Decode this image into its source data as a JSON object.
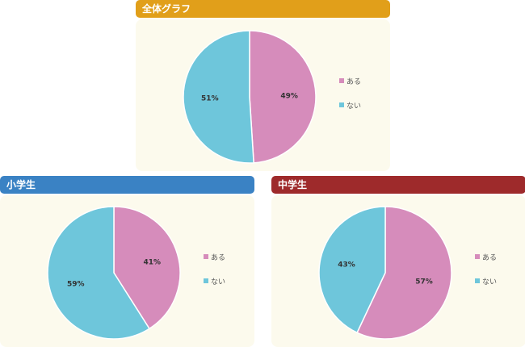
{
  "chart_data": [
    {
      "type": "pie",
      "title": "全体グラフ",
      "header_color": "#e19f1a",
      "categories": [
        "ある",
        "ない"
      ],
      "values": [
        49,
        51
      ],
      "labels": [
        "49%",
        "51%"
      ]
    },
    {
      "type": "pie",
      "title": "小学生",
      "header_color": "#3a82c4",
      "categories": [
        "ある",
        "ない"
      ],
      "values": [
        41,
        59
      ],
      "labels": [
        "41%",
        "59%"
      ]
    },
    {
      "type": "pie",
      "title": "中学生",
      "header_color": "#9e2a2b",
      "categories": [
        "ある",
        "ない"
      ],
      "values": [
        57,
        43
      ],
      "labels": [
        "57%",
        "43%"
      ]
    }
  ],
  "colors": {
    "ある": "#d68cbb",
    "ない": "#6ec6db"
  }
}
